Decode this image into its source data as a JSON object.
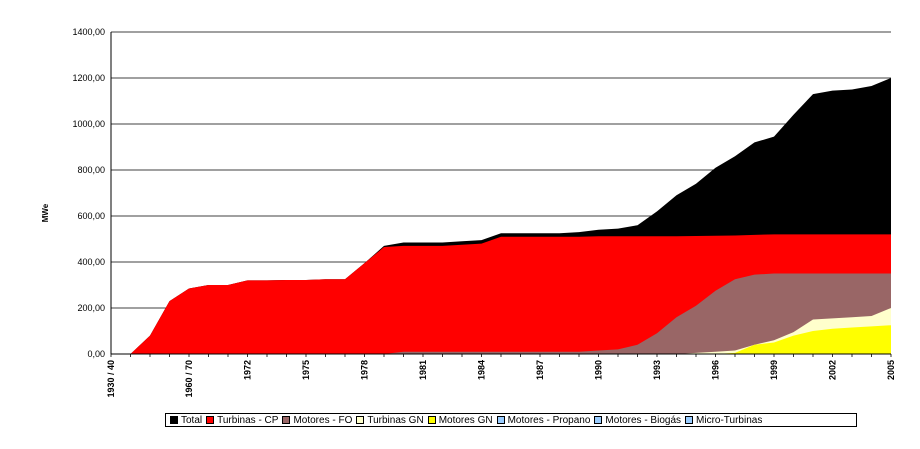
{
  "chart_data": {
    "type": "area",
    "ylabel": "MWe",
    "xlabel": "",
    "ylim": [
      0,
      1400
    ],
    "yticks": [
      "0,00",
      "200,00",
      "400,00",
      "600,00",
      "800,00",
      "1000,00",
      "1200,00",
      "1400,00"
    ],
    "x_tick_labels": [
      {
        "label": "1930 / 40",
        "pos": 0
      },
      {
        "label": "1960 / 70",
        "pos": 4
      },
      {
        "label": "1972",
        "pos": 7
      },
      {
        "label": "1975",
        "pos": 10
      },
      {
        "label": "1978",
        "pos": 13
      },
      {
        "label": "1981",
        "pos": 16
      },
      {
        "label": "1984",
        "pos": 19
      },
      {
        "label": "1987",
        "pos": 22
      },
      {
        "label": "1990",
        "pos": 25
      },
      {
        "label": "1993",
        "pos": 28
      },
      {
        "label": "1996",
        "pos": 31
      },
      {
        "label": "1999",
        "pos": 34
      },
      {
        "label": "2002",
        "pos": 37
      },
      {
        "label": "2005",
        "pos": 40
      }
    ],
    "n_points": 41,
    "grid": "horizontal",
    "legend_position": "bottom",
    "series": [
      {
        "name": "Total",
        "color": "#000000",
        "values": [
          0,
          0,
          80,
          230,
          285,
          300,
          300,
          320,
          320,
          322,
          322,
          325,
          325,
          395,
          470,
          485,
          485,
          485,
          490,
          495,
          525,
          525,
          525,
          525,
          530,
          540,
          545,
          560,
          620,
          690,
          740,
          810,
          860,
          920,
          945,
          1040,
          1130,
          1145,
          1150,
          1165,
          1200
        ]
      },
      {
        "name": "Turbinas - CP",
        "color": "#ff0000",
        "values": [
          0,
          0,
          80,
          230,
          285,
          300,
          300,
          320,
          320,
          322,
          322,
          325,
          325,
          395,
          465,
          470,
          470,
          470,
          475,
          480,
          510,
          510,
          510,
          510,
          510,
          512,
          512,
          512,
          512,
          512,
          513,
          514,
          515,
          518,
          520,
          520,
          520,
          520,
          520,
          520,
          520
        ]
      },
      {
        "name": "Motores - FO",
        "color": "#996666",
        "values": [
          0,
          0,
          0,
          0,
          0,
          0,
          0,
          0,
          0,
          0,
          0,
          0,
          0,
          0,
          0,
          10,
          10,
          10,
          10,
          10,
          10,
          10,
          10,
          10,
          10,
          15,
          20,
          40,
          90,
          160,
          210,
          275,
          325,
          345,
          350,
          350,
          350,
          350,
          350,
          350,
          350
        ]
      },
      {
        "name": "Turbinas GN",
        "color": "#ffffcc",
        "values": [
          0,
          0,
          0,
          0,
          0,
          0,
          0,
          0,
          0,
          0,
          0,
          0,
          0,
          0,
          0,
          0,
          0,
          0,
          0,
          0,
          0,
          0,
          0,
          0,
          0,
          0,
          0,
          0,
          0,
          0,
          5,
          10,
          15,
          40,
          60,
          95,
          150,
          155,
          160,
          165,
          200
        ]
      },
      {
        "name": "Motores GN",
        "color": "#ffff00",
        "values": [
          0,
          0,
          0,
          0,
          0,
          0,
          0,
          0,
          0,
          0,
          0,
          0,
          0,
          0,
          0,
          0,
          0,
          0,
          0,
          0,
          0,
          0,
          0,
          0,
          0,
          0,
          0,
          0,
          0,
          0,
          0,
          0,
          5,
          40,
          50,
          80,
          100,
          110,
          115,
          120,
          125
        ]
      },
      {
        "name": "Motores - Propano",
        "color": "#99ccff",
        "values": []
      },
      {
        "name": "Motores - Biogás",
        "color": "#99ccff",
        "values": []
      },
      {
        "name": "Micro-Turbinas",
        "color": "#99ccff",
        "values": []
      }
    ]
  }
}
